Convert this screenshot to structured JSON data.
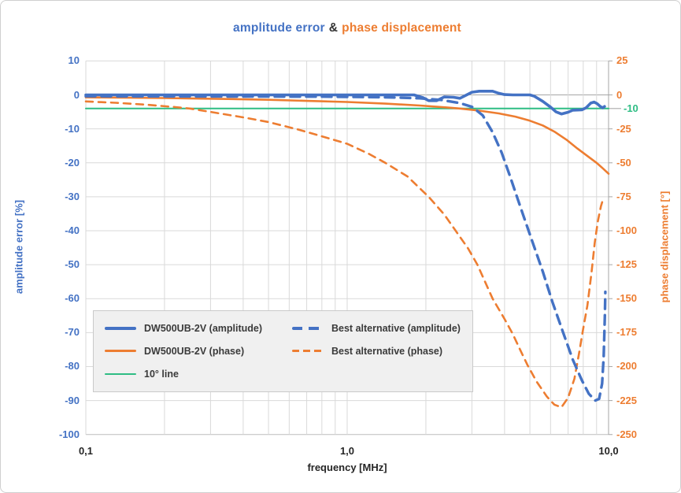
{
  "colors": {
    "amplitude_blue": "#4472C4",
    "phase_orange": "#ED7D31",
    "line_green": "#2EBD84",
    "grid_light": "#d9d9d9",
    "grid_zero": "#a6a6a6",
    "axis_gray": "#a6a6a6",
    "text_dark": "#262626"
  },
  "chart_data": {
    "type": "line",
    "title": "amplitude error & phase displacement",
    "title_parts": {
      "left": "amplitude error",
      "sep": "&",
      "right": "phase displacement"
    },
    "x_axis": {
      "label": "frequency [MHz]",
      "scale": "log",
      "min": 0.1,
      "max": 10,
      "tick_values": [
        0.1,
        1,
        10
      ],
      "tick_labels": [
        "0,1",
        "1,0",
        "10,0"
      ],
      "minor_gridlines": [
        0.1,
        0.2,
        0.3,
        0.4,
        0.5,
        0.6,
        0.7,
        0.8,
        0.9,
        1,
        2,
        3,
        4,
        5,
        6,
        7,
        8,
        9,
        10
      ]
    },
    "y_left": {
      "label": "amplitude error [%]",
      "unit": "%",
      "min": -100,
      "max": 10,
      "ticks": [
        10,
        0,
        -10,
        -20,
        -30,
        -40,
        -50,
        -60,
        -70,
        -80,
        -90,
        -100
      ]
    },
    "y_right": {
      "label": "phase displacement [°]",
      "unit": "°",
      "min": -250,
      "max": 25,
      "ticks": [
        25,
        0,
        -25,
        -50,
        -75,
        -100,
        -125,
        -150,
        -175,
        -200,
        -225,
        -250
      ],
      "annotation": {
        "text": "-10",
        "value": -10
      }
    },
    "grid": true,
    "legend_position": "inside-bottom-left",
    "legend": {
      "items": [
        {
          "label": "DW500UB-2V (amplitude)",
          "color": "#4472C4",
          "dash": "solid",
          "thickness": 4
        },
        {
          "label": "Best alternative (amplitude)",
          "color": "#4472C4",
          "dash": "dashed",
          "thickness": 4
        },
        {
          "label": "DW500UB-2V (phase)",
          "color": "#ED7D31",
          "dash": "solid",
          "thickness": 3
        },
        {
          "label": "Best alternative (phase)",
          "color": "#ED7D31",
          "dash": "dashed",
          "thickness": 3
        },
        {
          "label": "10° line",
          "color": "#2EBD84",
          "dash": "solid",
          "thickness": 2
        }
      ]
    },
    "series": [
      {
        "name": "10° line",
        "axis": "right",
        "color": "#2EBD84",
        "dash": "solid",
        "width": 2,
        "points": [
          [
            0.1,
            -10
          ],
          [
            10,
            -10
          ]
        ]
      },
      {
        "name": "Best alternative (phase)",
        "axis": "right",
        "color": "#ED7D31",
        "dash": "dashed",
        "width": 2.6,
        "points": [
          [
            0.1,
            -4.8
          ],
          [
            0.13,
            -5.8
          ],
          [
            0.17,
            -7.2
          ],
          [
            0.22,
            -9
          ],
          [
            0.25,
            -10
          ],
          [
            0.3,
            -12.5
          ],
          [
            0.4,
            -16.5
          ],
          [
            0.5,
            -20
          ],
          [
            0.65,
            -25.5
          ],
          [
            0.8,
            -30.5
          ],
          [
            1.0,
            -36
          ],
          [
            1.2,
            -43
          ],
          [
            1.4,
            -50
          ],
          [
            1.7,
            -60
          ],
          [
            2.05,
            -75
          ],
          [
            2.35,
            -88
          ],
          [
            2.6,
            -100
          ],
          [
            2.9,
            -113
          ],
          [
            3.15,
            -125
          ],
          [
            3.6,
            -150
          ],
          [
            4.0,
            -165
          ],
          [
            4.3,
            -176
          ],
          [
            4.6,
            -188
          ],
          [
            4.9,
            -199
          ],
          [
            5.3,
            -211
          ],
          [
            5.8,
            -222
          ],
          [
            6.2,
            -228
          ],
          [
            6.6,
            -230
          ],
          [
            7.0,
            -223
          ],
          [
            7.4,
            -209
          ],
          [
            7.7,
            -191
          ],
          [
            8.0,
            -172
          ],
          [
            8.3,
            -155
          ],
          [
            8.6,
            -131
          ],
          [
            8.85,
            -109
          ],
          [
            9.1,
            -93
          ],
          [
            9.35,
            -82
          ],
          [
            9.55,
            -76
          ]
        ]
      },
      {
        "name": "DW500UB-2V (phase)",
        "axis": "right",
        "color": "#ED7D31",
        "dash": "solid",
        "width": 2.6,
        "points": [
          [
            0.1,
            -1.8
          ],
          [
            0.2,
            -2.3
          ],
          [
            0.35,
            -3
          ],
          [
            0.5,
            -3.6
          ],
          [
            0.7,
            -4.4
          ],
          [
            1.0,
            -5.2
          ],
          [
            1.4,
            -6.4
          ],
          [
            1.9,
            -7.8
          ],
          [
            2.4,
            -9.2
          ],
          [
            2.7,
            -10
          ],
          [
            3.2,
            -11.6
          ],
          [
            3.8,
            -13.6
          ],
          [
            4.4,
            -16
          ],
          [
            5.0,
            -19
          ],
          [
            5.6,
            -22.5
          ],
          [
            6.2,
            -27
          ],
          [
            6.9,
            -33
          ],
          [
            7.6,
            -39.5
          ],
          [
            8.3,
            -45
          ],
          [
            9.0,
            -50
          ],
          [
            9.5,
            -54
          ],
          [
            10,
            -58
          ]
        ]
      },
      {
        "name": "Best alternative (amplitude)",
        "axis": "left",
        "color": "#4472C4",
        "dash": "dashed",
        "width": 3.4,
        "points": [
          [
            0.1,
            -0.4
          ],
          [
            0.8,
            -0.5
          ],
          [
            1.4,
            -0.7
          ],
          [
            1.9,
            -1
          ],
          [
            2.3,
            -1.5
          ],
          [
            2.7,
            -2.4
          ],
          [
            3.0,
            -3.5
          ],
          [
            3.3,
            -6
          ],
          [
            3.6,
            -11
          ],
          [
            3.9,
            -17
          ],
          [
            4.2,
            -24
          ],
          [
            4.6,
            -33
          ],
          [
            5.1,
            -43
          ],
          [
            5.6,
            -52
          ],
          [
            6.1,
            -61
          ],
          [
            6.7,
            -70
          ],
          [
            7.3,
            -78
          ],
          [
            7.9,
            -84
          ],
          [
            8.4,
            -88
          ],
          [
            8.9,
            -90
          ],
          [
            9.2,
            -89.5
          ],
          [
            9.45,
            -85
          ],
          [
            9.58,
            -77
          ],
          [
            9.68,
            -65
          ],
          [
            9.72,
            -58
          ]
        ]
      },
      {
        "name": "DW500UB-2V (amplitude)",
        "axis": "left",
        "color": "#4472C4",
        "dash": "solid",
        "width": 3.6,
        "points": [
          [
            0.1,
            0
          ],
          [
            0.6,
            0
          ],
          [
            1.2,
            0
          ],
          [
            1.8,
            0
          ],
          [
            1.95,
            -0.8
          ],
          [
            2.05,
            -1.7
          ],
          [
            2.2,
            -1.7
          ],
          [
            2.35,
            -0.6
          ],
          [
            2.55,
            -0.7
          ],
          [
            2.7,
            -1
          ],
          [
            2.85,
            -0.1
          ],
          [
            3.0,
            0.8
          ],
          [
            3.2,
            1.1
          ],
          [
            3.6,
            1.1
          ],
          [
            3.8,
            0.5
          ],
          [
            4.0,
            0.1
          ],
          [
            4.3,
            0
          ],
          [
            5.0,
            0
          ],
          [
            5.2,
            -0.4
          ],
          [
            5.6,
            -1.9
          ],
          [
            6.0,
            -3.6
          ],
          [
            6.3,
            -5
          ],
          [
            6.6,
            -5.6
          ],
          [
            7.0,
            -5.1
          ],
          [
            7.3,
            -4.5
          ],
          [
            7.9,
            -4.4
          ],
          [
            8.2,
            -3.8
          ],
          [
            8.55,
            -2.4
          ],
          [
            8.8,
            -2.1
          ],
          [
            9.05,
            -2.6
          ],
          [
            9.3,
            -3.4
          ],
          [
            9.5,
            -3.8
          ],
          [
            9.65,
            -3.4
          ]
        ]
      }
    ]
  }
}
